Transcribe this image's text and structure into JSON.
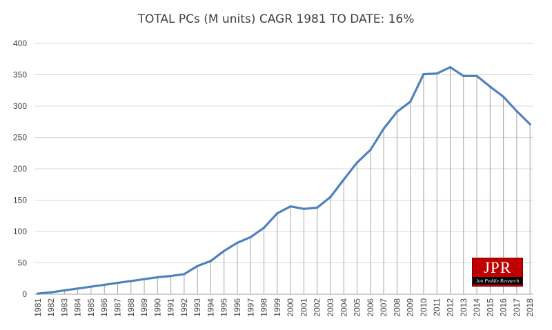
{
  "chart_data": {
    "type": "line",
    "title": "TOTAL PCs (M units) CAGR 1981 TO DATE: 16%",
    "xlabel": "",
    "ylabel": "",
    "ylim": [
      0,
      400
    ],
    "yticks": [
      0,
      50,
      100,
      150,
      200,
      250,
      300,
      350,
      400
    ],
    "grid": true,
    "drop_lines": true,
    "categories": [
      "1981",
      "1982",
      "1983",
      "1984",
      "1985",
      "1986",
      "1987",
      "1988",
      "1989",
      "1990",
      "1991",
      "1992",
      "1993",
      "1994",
      "1995",
      "1996",
      "1997",
      "1998",
      "1999",
      "2000",
      "2001",
      "2002",
      "2003",
      "2004",
      "2005",
      "2006",
      "2007",
      "2008",
      "2009",
      "2010",
      "2011",
      "2012",
      "2013",
      "2014",
      "2015",
      "2016",
      "2017",
      "2018"
    ],
    "series": [
      {
        "values": [
          1,
          3,
          6,
          9,
          12,
          15,
          18,
          21,
          24,
          27,
          29,
          32,
          45,
          53,
          69,
          82,
          91,
          106,
          129,
          140,
          136,
          138,
          155,
          183,
          210,
          230,
          264,
          291,
          307,
          351,
          352,
          362,
          348,
          348,
          331,
          315,
          292,
          271
        ],
        "color": "#4f81bd"
      }
    ]
  },
  "logo": {
    "main_text": "JPR",
    "sub_text": "Jon Peddie Research"
  }
}
